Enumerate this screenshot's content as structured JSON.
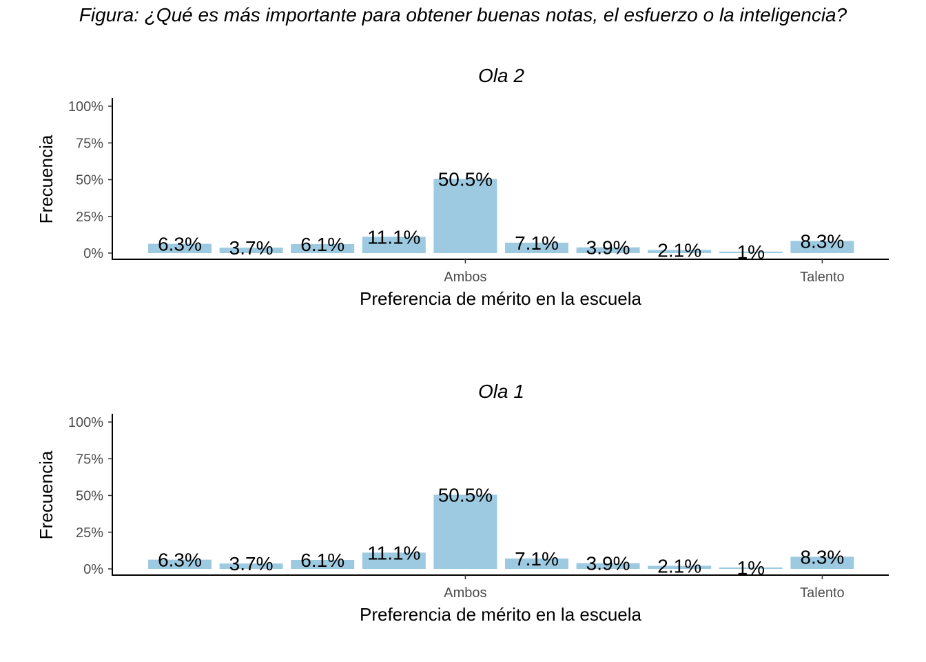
{
  "figure": {
    "title": "Figura: ¿Qué es más importante para obtener buenas notas, el esfuerzo o la inteligencia?"
  },
  "chart_data": [
    {
      "type": "bar",
      "title": "Ola 2",
      "xlabel": "Preferencia de mérito en la escuela",
      "ylabel": "Frecuencia",
      "ylim": [
        0,
        1
      ],
      "y_ticks": [
        0,
        0.25,
        0.5,
        0.75,
        1
      ],
      "y_tick_labels": [
        "0%",
        "25%",
        "50%",
        "75%",
        "100%"
      ],
      "x_tick_labels": [
        {
          "category_index": 4,
          "label": "Ambos"
        },
        {
          "category_index": 9,
          "label": "Talento"
        }
      ],
      "categories": [
        "1",
        "2",
        "3",
        "4",
        "5",
        "6",
        "7",
        "8",
        "9",
        "10"
      ],
      "values": [
        0.063,
        0.037,
        0.061,
        0.111,
        0.505,
        0.071,
        0.039,
        0.021,
        0.01,
        0.083
      ],
      "data_labels": [
        "6.3%",
        "3.7%",
        "6.1%",
        "11.1%",
        "50.5%",
        "7.1%",
        "3.9%",
        "2.1%",
        "1%",
        "8.3%"
      ],
      "bar_color": "#9ecae1",
      "grid": false,
      "legend": "none"
    },
    {
      "type": "bar",
      "title": "Ola 1",
      "xlabel": "Preferencia de mérito en la escuela",
      "ylabel": "Frecuencia",
      "ylim": [
        0,
        1
      ],
      "y_ticks": [
        0,
        0.25,
        0.5,
        0.75,
        1
      ],
      "y_tick_labels": [
        "0%",
        "25%",
        "50%",
        "75%",
        "100%"
      ],
      "x_tick_labels": [
        {
          "category_index": 4,
          "label": "Ambos"
        },
        {
          "category_index": 9,
          "label": "Talento"
        }
      ],
      "categories": [
        "1",
        "2",
        "3",
        "4",
        "5",
        "6",
        "7",
        "8",
        "9",
        "10"
      ],
      "values": [
        0.063,
        0.037,
        0.061,
        0.111,
        0.505,
        0.071,
        0.039,
        0.021,
        0.01,
        0.083
      ],
      "data_labels": [
        "6.3%",
        "3.7%",
        "6.1%",
        "11.1%",
        "50.5%",
        "7.1%",
        "3.9%",
        "2.1%",
        "1%",
        "8.3%"
      ],
      "bar_color": "#9ecae1",
      "grid": false,
      "legend": "none"
    }
  ]
}
